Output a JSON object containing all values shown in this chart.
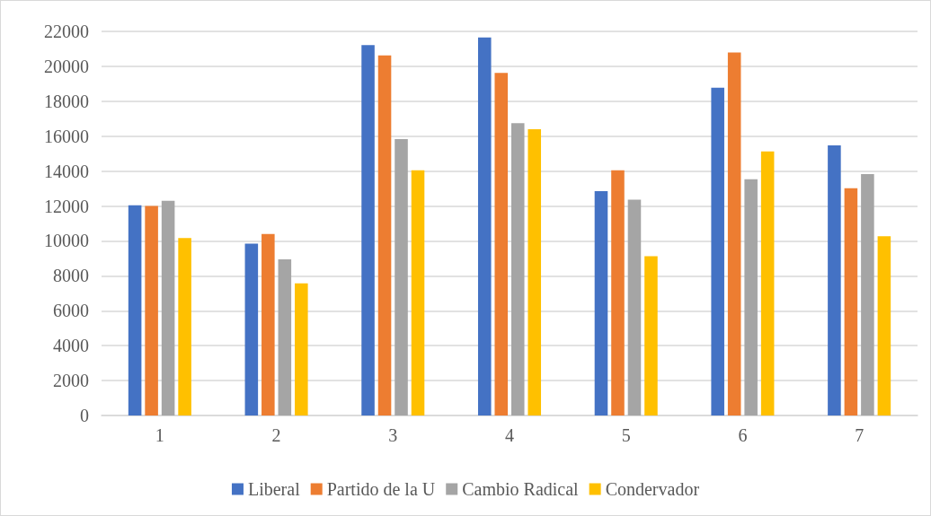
{
  "chart_data": {
    "type": "bar",
    "categories": [
      "1",
      "2",
      "3",
      "4",
      "5",
      "6",
      "7"
    ],
    "series": [
      {
        "name": "Liberal",
        "color": "#4472c4",
        "values": [
          12040,
          9840,
          21210,
          21650,
          12850,
          18780,
          15470
        ]
      },
      {
        "name": "Partido de la U",
        "color": "#ed7d31",
        "values": [
          12000,
          10400,
          20630,
          19620,
          14040,
          20790,
          13020
        ]
      },
      {
        "name": "Cambio Radical",
        "color": "#a5a5a5",
        "values": [
          12300,
          8950,
          15830,
          16750,
          12360,
          13530,
          13830
        ]
      },
      {
        "name": "Condervador",
        "color": "#ffc000",
        "values": [
          10160,
          7570,
          14040,
          16400,
          9120,
          15120,
          10270
        ]
      }
    ],
    "ylim": [
      0,
      22000
    ],
    "yticks": [
      0,
      2000,
      4000,
      6000,
      8000,
      10000,
      12000,
      14000,
      16000,
      18000,
      20000,
      22000
    ],
    "grid": "y",
    "legend": "bottom"
  }
}
